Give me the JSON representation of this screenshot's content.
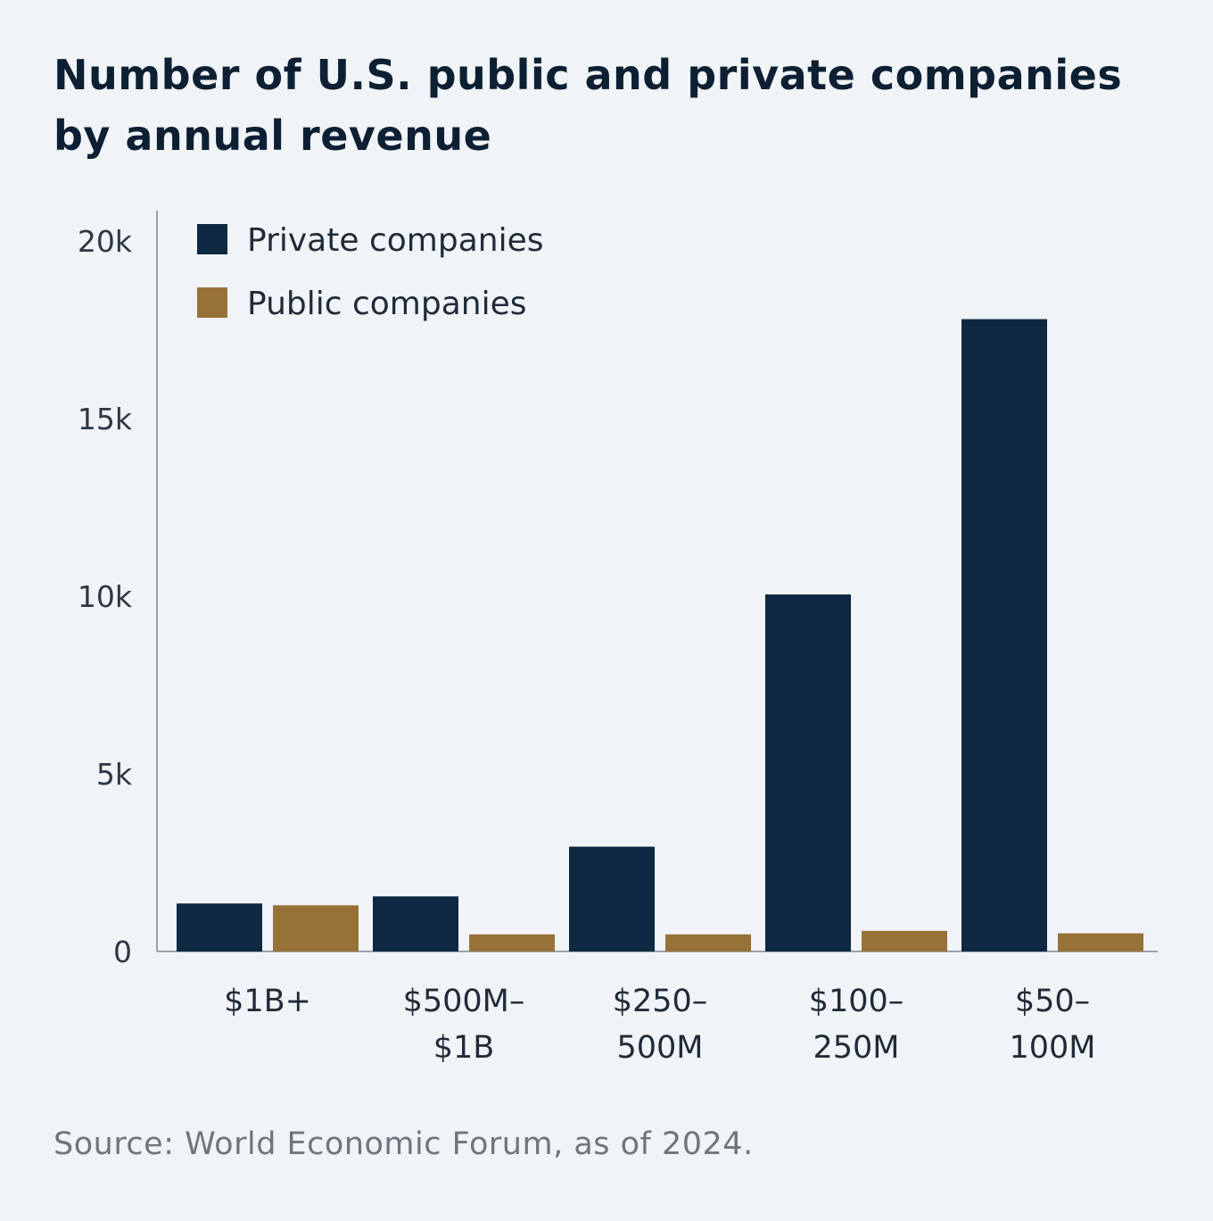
{
  "title_lines": [
    "Number of U.S. public and private companies",
    "by annual revenue"
  ],
  "source": "Source: World Economic Forum, as of 2024.",
  "colors": {
    "private": "#0d2840",
    "public": "#977238",
    "axis": "#9aa1a8",
    "background": "#f1f4f7"
  },
  "chart_data": {
    "type": "bar",
    "title": "Number of U.S. public and private companies by annual revenue",
    "categories": [
      "$1B+",
      "$500M–$1B",
      "$250–500M",
      "$100–250M",
      "$50–100M"
    ],
    "category_label_lines": [
      [
        "$1B+"
      ],
      [
        "$500M–",
        "$1B"
      ],
      [
        "$250–",
        "500M"
      ],
      [
        "$100–",
        "250M"
      ],
      [
        "$50–",
        "100M"
      ]
    ],
    "series": [
      {
        "name": "Private companies",
        "values": [
          1350,
          1550,
          2950,
          10050,
          17800
        ]
      },
      {
        "name": "Public companies",
        "values": [
          1300,
          480,
          480,
          580,
          510
        ]
      }
    ],
    "ylim": [
      0,
      20000
    ],
    "yticks": [
      0,
      5000,
      10000,
      15000,
      20000
    ],
    "ytick_labels": [
      "0",
      "5k",
      "10k",
      "15k",
      "20k"
    ],
    "xlabel": "",
    "ylabel": "",
    "grid": false,
    "legend_position": "top-left"
  }
}
